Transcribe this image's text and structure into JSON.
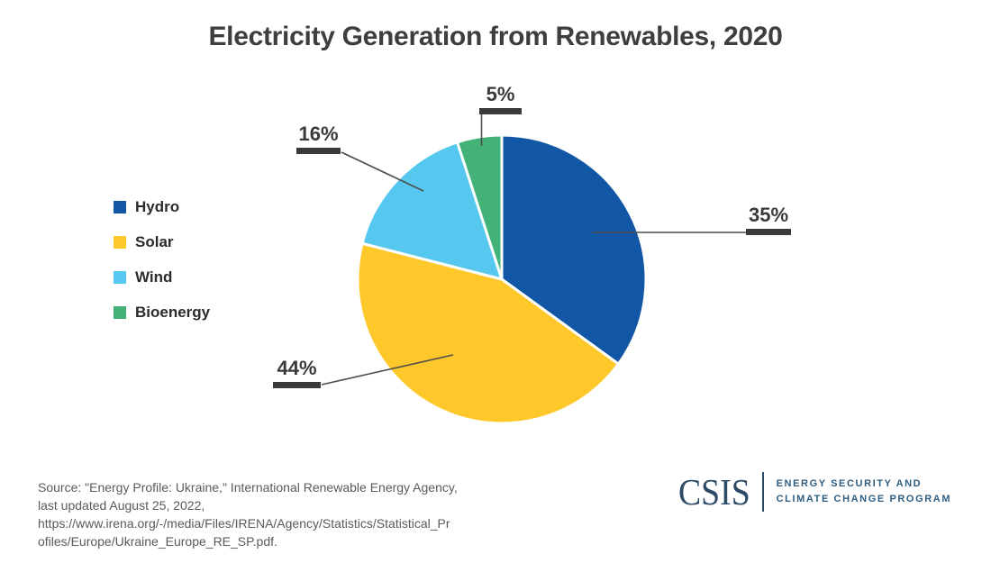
{
  "title": "Electricity Generation from Renewables, 2020",
  "chart_data": {
    "type": "pie",
    "title": "Electricity Generation from Renewables, 2020",
    "categories": [
      "Hydro",
      "Solar",
      "Wind",
      "Bioenergy"
    ],
    "values": [
      35,
      44,
      16,
      5
    ],
    "unit": "%",
    "labels": [
      "35%",
      "44%",
      "16%",
      "5%"
    ],
    "colors": [
      "#1257a5",
      "#fec82b",
      "#56c8f0",
      "#43b278"
    ],
    "start_angle_deg": 0,
    "direction": "clockwise",
    "legend_position": "left",
    "slice_separator_color": "#ffffff"
  },
  "source": {
    "lines": [
      "Source: \"Energy Profile: Ukraine,\" International Renewable Energy Agency,",
      "last updated August 25, 2022,",
      "https://www.irena.org/-/media/Files/IRENA/Agency/Statistics/Statistical_Pr",
      "ofiles/Europe/Ukraine_Europe_RE_SP.pdf."
    ]
  },
  "branding": {
    "wordmark": "CSIS",
    "program_line1": "ENERGY SECURITY AND",
    "program_line2": "CLIMATE CHANGE PROGRAM",
    "wordmark_color": "#2c4a66",
    "program_color": "#2f5d80"
  }
}
